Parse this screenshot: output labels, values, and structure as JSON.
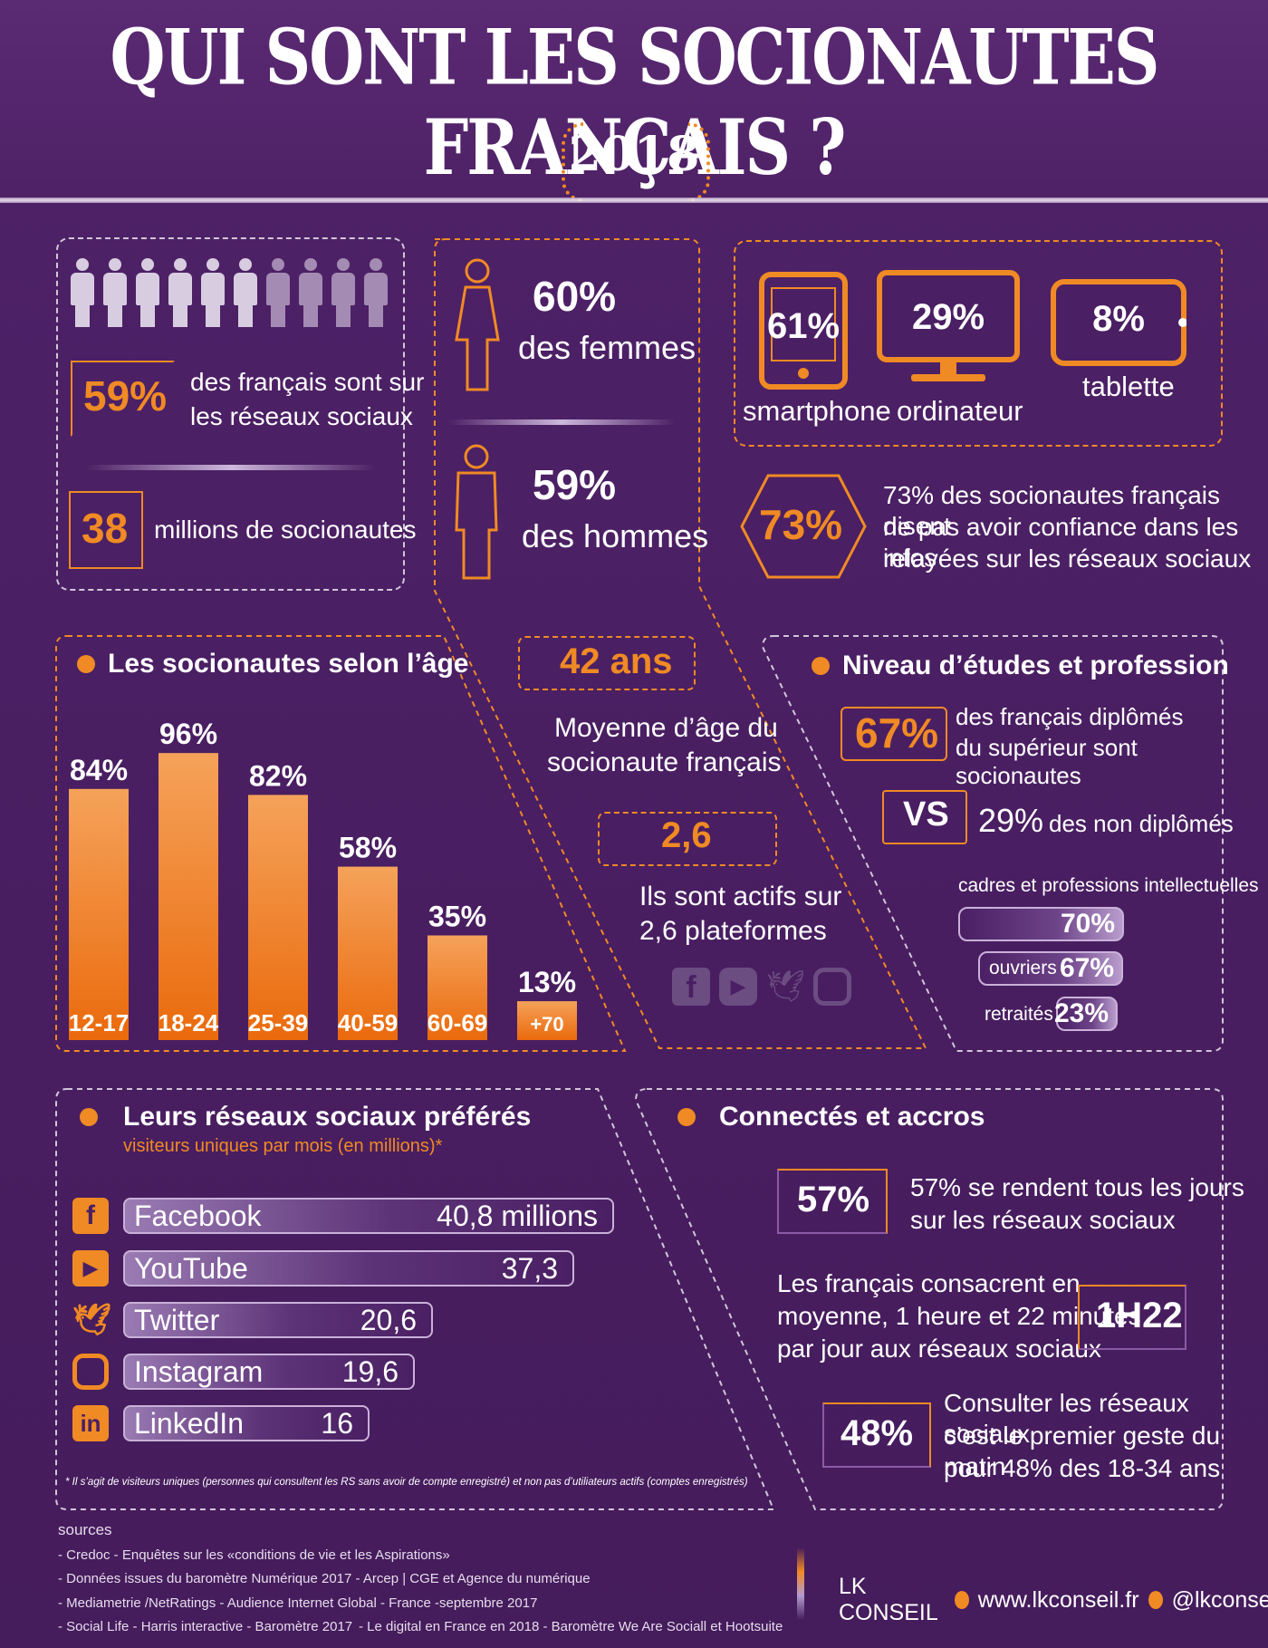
{
  "header": {
    "title": "QUI SONT LES SOCIONAUTES FRANÇAIS ?",
    "year": "2018"
  },
  "panel1": {
    "pct": "59%",
    "pct_text_1": "des français sont sur",
    "pct_text_2": "les réseaux sociaux",
    "millions": "38",
    "millions_text": "millions de socionautes"
  },
  "gender": {
    "women_pct": "60%",
    "women_text": "des femmes",
    "men_pct": "59%",
    "men_text": "des hommes"
  },
  "devices": [
    {
      "value": "61%",
      "label": "smartphone"
    },
    {
      "value": "29%",
      "label": "ordinateur"
    },
    {
      "value": "8%",
      "label": "tablette"
    }
  ],
  "trust": {
    "value": "73%",
    "line1": "73% des socionautes français disent",
    "line2": "ne pas avoir confiance dans les infos",
    "line3": "relayées sur les réseaux sociaux"
  },
  "age_section": {
    "title": "Les socionautes selon l’âge"
  },
  "chart_data": {
    "type": "bar",
    "title": "Les socionautes selon l’âge",
    "categories": [
      "12-17",
      "18-24",
      "25-39",
      "40-59",
      "60-69",
      "+70"
    ],
    "values": [
      84,
      96,
      82,
      58,
      35,
      13
    ],
    "value_labels": [
      "84%",
      "96%",
      "82%",
      "58%",
      "35%",
      "13%"
    ],
    "ylim": [
      0,
      100
    ],
    "colors": {
      "bar_top": "#f5a25a",
      "bar_bottom": "#ea6a0c"
    }
  },
  "age_avg": {
    "value": "42 ans",
    "line1": "Moyenne d’âge du",
    "line2": "socionaute français"
  },
  "platforms": {
    "value": "2,6",
    "line1": "Ils sont actifs sur",
    "line2": "2,6 plateformes"
  },
  "education": {
    "title": "Niveau d’études et profession",
    "pct": "67%",
    "line1": "des français diplômés",
    "line2": "du supérieur sont socionautes",
    "vs": "VS",
    "vs_pct": "29%",
    "vs_text": "des non diplômés",
    "jobs_title": "cadres et professions intellectuelles",
    "cadres_value": "70%",
    "ouvriers_label": "ouvriers",
    "ouvriers_value": "67%",
    "retraites_label": "retraités",
    "retraites_value": "23%"
  },
  "favorites": {
    "title": "Leurs réseaux sociaux préférés",
    "subtitle": "visiteurs uniques par mois (en millions)*",
    "items": [
      {
        "name": "Facebook",
        "value": "40,8 millions",
        "icon": "facebook-icon"
      },
      {
        "name": "YouTube",
        "value": "37,3",
        "icon": "youtube-icon"
      },
      {
        "name": "Twitter",
        "value": "20,6",
        "icon": "twitter-icon"
      },
      {
        "name": "Instagram",
        "value": "19,6",
        "icon": "instagram-icon"
      },
      {
        "name": "LinkedIn",
        "value": "16",
        "icon": "linkedin-icon"
      }
    ],
    "footnote": "* Il s’agit de visiteurs uniques (personnes qui consultent les RS sans avoir de compte enregistré) et non pas d’utiliateurs actifs (comptes enregistrés)"
  },
  "connected": {
    "title": "Connectés et accros",
    "daily_value": "57%",
    "daily_line1": "57% se rendent tous les jours",
    "daily_line2": "sur les réseaux sociaux",
    "time_line1": "Les français consacrent en",
    "time_line2": "moyenne, 1 heure et 22 minutes",
    "time_line3": "par jour aux réseaux sociaux",
    "time_value": "1H22",
    "morning_value": "48%",
    "morning_line1": "Consulter les réseaux sociaux",
    "morning_line2": "c’est le premier geste du matin",
    "morning_line3": "pour 48%  des 18-34 ans"
  },
  "sources": {
    "title": "sources",
    "lines": [
      "- Credoc - Enquêtes sur les «conditions de vie et les Aspirations»",
      "- Données issues du baromètre Numérique 2017 -   Arcep | CGE et Agence du numérique",
      "- Mediametrie /NetRatings - Audience Internet Global - France -septembre 2017",
      "- Social Life - Harris interactive - Baromètre 2017"
    ],
    "extra": "- Le digital en France en 2018 - Baromètre We Are Sociall  et Hootsuite"
  },
  "footer": {
    "brand": "LK CONSEIL",
    "website": "www.lkconseil.fr",
    "handle": "@lkconseil"
  }
}
